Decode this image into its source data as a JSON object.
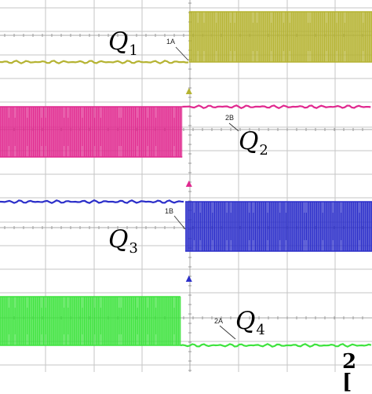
{
  "chart_data": {
    "type": "line",
    "title": "",
    "xlabel": "",
    "ylabel": "",
    "grid": true,
    "x_range": [
      0,
      10
    ],
    "y_range": [
      0,
      1
    ],
    "series": [
      {
        "name": "Q1",
        "label_main": "Q",
        "label_sub": "1",
        "color": "#b5b332",
        "segments": [
          {
            "x_start": 0.0,
            "x_end": 5.08,
            "state": "low"
          },
          {
            "x_start": 5.08,
            "x_end": 10.0,
            "state": "switching"
          }
        ],
        "marker": "1A",
        "marker_x": 5.08,
        "trigger_x": 5.08
      },
      {
        "name": "Q2",
        "label_main": "Q",
        "label_sub": "2",
        "color": "#e0298f",
        "segments": [
          {
            "x_start": 0.0,
            "x_end": 4.9,
            "state": "switching"
          },
          {
            "x_start": 4.9,
            "x_end": 10.0,
            "state": "high"
          }
        ],
        "marker": "2B",
        "marker_x": 6.15,
        "trigger_x": 5.08
      },
      {
        "name": "Q3",
        "label_main": "Q",
        "label_sub": "3",
        "color": "#2b2ec9",
        "segments": [
          {
            "x_start": 0.0,
            "x_end": 4.98,
            "state": "high"
          },
          {
            "x_start": 4.98,
            "x_end": 10.0,
            "state": "switching"
          }
        ],
        "marker": "1B",
        "marker_x": 4.98,
        "trigger_x": 5.08
      },
      {
        "name": "Q4",
        "label_main": "Q",
        "label_sub": "4",
        "color": "#3ee33e",
        "segments": [
          {
            "x_start": 0.0,
            "x_end": 4.85,
            "state": "switching"
          },
          {
            "x_start": 4.85,
            "x_end": 10.0,
            "state": "low"
          }
        ],
        "marker": "2A",
        "marker_x": 5.95,
        "trigger_x": null
      }
    ],
    "channel_indicator": "2 ["
  }
}
